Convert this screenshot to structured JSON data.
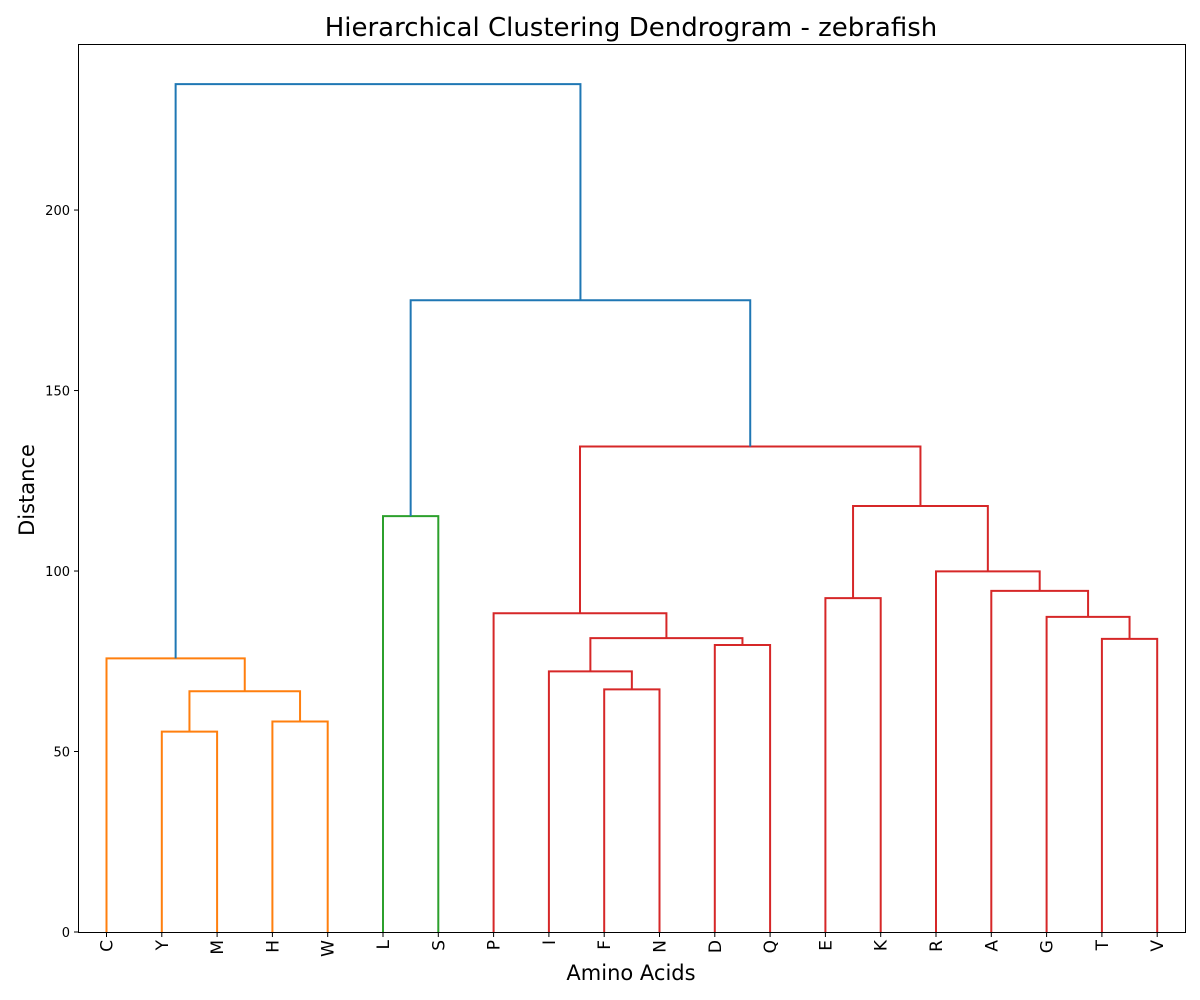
{
  "chart_data": {
    "type": "dendrogram",
    "title": "Hierarchical Clustering Dendrogram - zebrafish",
    "xlabel": "Amino Acids",
    "ylabel": "Distance",
    "ylim": [
      0,
      246
    ],
    "yticks": [
      0,
      50,
      100,
      150,
      200
    ],
    "grid": false,
    "leaves": [
      "C",
      "Y",
      "M",
      "H",
      "W",
      "L",
      "S",
      "P",
      "I",
      "F",
      "N",
      "D",
      "Q",
      "E",
      "K",
      "R",
      "A",
      "G",
      "T",
      "V"
    ],
    "colors": {
      "above_threshold": "#1f77b4",
      "cluster_1": "#ff7f0e",
      "cluster_2": "#2ca02c",
      "cluster_3": "#d62728"
    },
    "merges": [
      {
        "left": "Y",
        "right": "M",
        "height": 55.5,
        "color": "cluster_1"
      },
      {
        "left": "H",
        "right": "W",
        "height": 58.3,
        "color": "cluster_1"
      },
      {
        "left": "Y+M",
        "right": "H+W",
        "height": 66.7,
        "color": "cluster_1"
      },
      {
        "left": "C",
        "right": "Y+M+H+W",
        "height": 75.8,
        "color": "cluster_1"
      },
      {
        "left": "L",
        "right": "S",
        "height": 115.2,
        "color": "cluster_2"
      },
      {
        "left": "F",
        "right": "N",
        "height": 67.2,
        "color": "cluster_3"
      },
      {
        "left": "I",
        "right": "F+N",
        "height": 72.2,
        "color": "cluster_3"
      },
      {
        "left": "D",
        "right": "Q",
        "height": 79.5,
        "color": "cluster_3"
      },
      {
        "left": "I+F+N",
        "right": "D+Q",
        "height": 81.4,
        "color": "cluster_3"
      },
      {
        "left": "P",
        "right": "I+F+N+D+Q",
        "height": 88.3,
        "color": "cluster_3"
      },
      {
        "left": "T",
        "right": "V",
        "height": 81.2,
        "color": "cluster_3"
      },
      {
        "left": "G",
        "right": "T+V",
        "height": 87.3,
        "color": "cluster_3"
      },
      {
        "left": "A",
        "right": "G+T+V",
        "height": 94.5,
        "color": "cluster_3"
      },
      {
        "left": "R",
        "right": "A+G+T+V",
        "height": 99.9,
        "color": "cluster_3"
      },
      {
        "left": "E",
        "right": "K",
        "height": 92.5,
        "color": "cluster_3"
      },
      {
        "left": "E+K",
        "right": "R+A+G+T+V",
        "height": 118.0,
        "color": "cluster_3"
      },
      {
        "left": "P+I+F+N+D+Q",
        "right": "E+K+R+A+G+T+V",
        "height": 134.5,
        "color": "cluster_3"
      },
      {
        "left": "L+S",
        "right": "P+I+F+N+D+Q+E+K+R+A+G+T+V",
        "height": 175.0,
        "color": "above_threshold"
      },
      {
        "left": "C+Y+M+H+W",
        "right": "L+S+P+I+F+N+D+Q+E+K+R+A+G+T+V",
        "height": 234.9,
        "color": "above_threshold"
      }
    ]
  }
}
